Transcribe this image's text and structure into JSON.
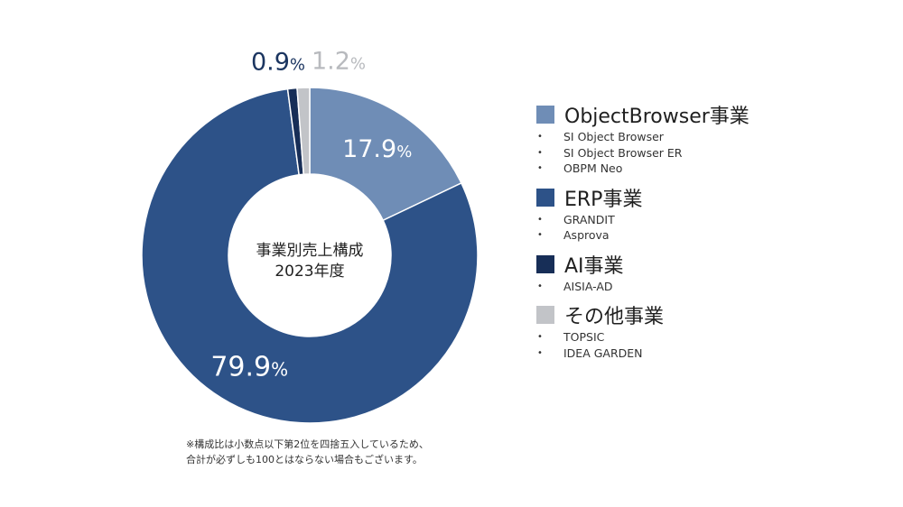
{
  "chart_data": {
    "type": "pie",
    "center_title": [
      "事業別売上構成",
      "2023年度"
    ],
    "slices": [
      {
        "label": "ObjectBrowser事業",
        "value": 17.9,
        "display": "17.9",
        "color": "#6f8db6"
      },
      {
        "label": "ERP事業",
        "value": 79.9,
        "display": "79.9",
        "color": "#2d5288"
      },
      {
        "label": "AI事業",
        "value": 0.9,
        "display": "0.9",
        "color": "#172e57"
      },
      {
        "label": "その他事業",
        "value": 1.2,
        "display": "1.2",
        "color": "#c2c4c8"
      }
    ],
    "percent_sign": "%"
  },
  "legend": [
    {
      "title": "ObjectBrowser事業",
      "color": "#6f8db6",
      "items": [
        "SI Object Browser",
        "SI Object Browser ER",
        "OBPM Neo"
      ]
    },
    {
      "title": "ERP事業",
      "color": "#2d5288",
      "items": [
        "GRANDIT",
        "Asprova"
      ]
    },
    {
      "title": "AI事業",
      "color": "#172e57",
      "items": [
        "AISIA-AD"
      ]
    },
    {
      "title": "その他事業",
      "color": "#c2c4c8",
      "items": [
        "TOPSIC",
        "IDEA GARDEN"
      ]
    }
  ],
  "note": [
    "※構成比は小数点以下第2位を四捨五入しているため、",
    "合計が必ずしも100とはならない場合もございます。"
  ]
}
